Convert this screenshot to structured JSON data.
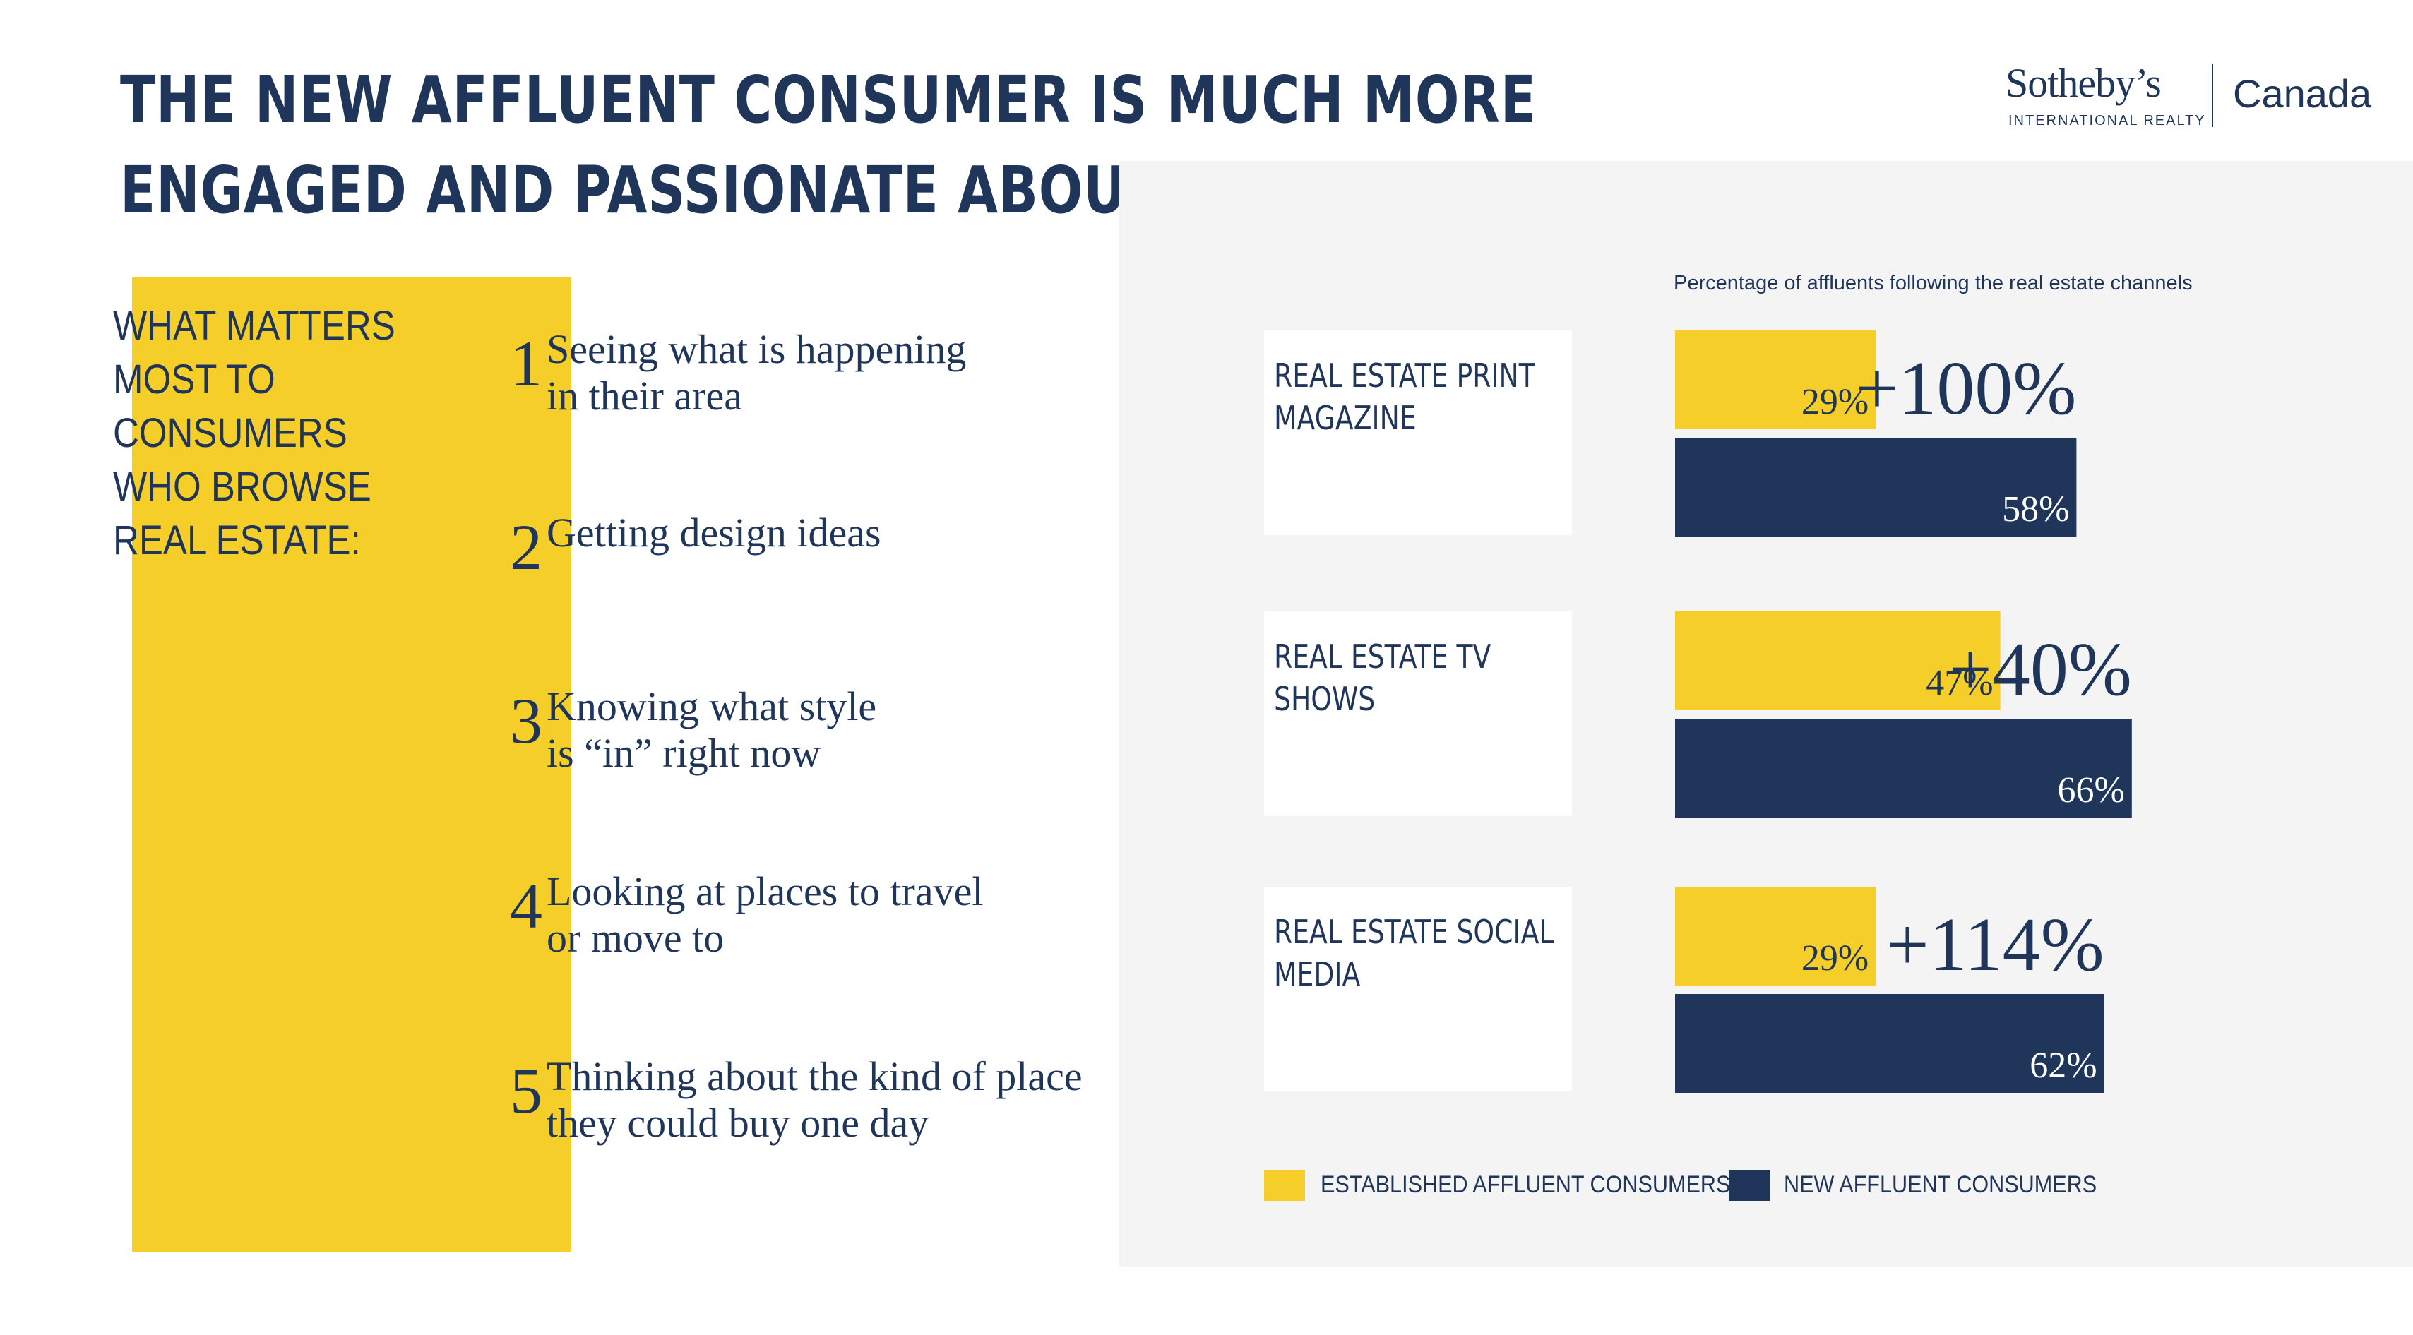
{
  "title_lines": [
    "THE NEW AFFLUENT CONSUMER IS MUCH MORE",
    "ENGAGED AND PASSIONATE ABOUT REAL ESTATE"
  ],
  "logo": {
    "wordmark": "Sotheby’s",
    "sub": "INTERNATIONAL REALTY",
    "country": "Canada"
  },
  "colors": {
    "navy": "#1f3559",
    "yellow": "#f5ce2a",
    "panel": "#f4f4f4"
  },
  "matters_lines": [
    "WHAT MATTERS",
    "MOST TO",
    "CONSUMERS",
    "WHO BROWSE",
    "REAL ESTATE:"
  ],
  "ranked_items": [
    {
      "num": "1",
      "lines": [
        "Seeing what is happening",
        "in their area"
      ]
    },
    {
      "num": "2",
      "lines": [
        "Getting design ideas"
      ]
    },
    {
      "num": "3",
      "lines": [
        "Knowing what style",
        "is “in” right now"
      ]
    },
    {
      "num": "4",
      "lines": [
        "Looking at places to travel",
        "or move to"
      ]
    },
    {
      "num": "5",
      "lines": [
        "Thinking about the kind of place",
        "they could buy one day"
      ]
    }
  ],
  "chart_data": {
    "type": "bar",
    "orientation": "horizontal",
    "title": "Percentage of affluents following the real estate channels",
    "category_lines": [
      [
        "REAL ESTATE PRINT",
        "MAGAZINE"
      ],
      [
        "REAL ESTATE TV",
        "SHOWS"
      ],
      [
        "REAL ESTATE SOCIAL",
        "MEDIA"
      ]
    ],
    "series": [
      {
        "name": "ESTABLISHED AFFLUENT CONSUMERS",
        "color": "#f5ce2a",
        "values": [
          29,
          47,
          29
        ],
        "labels": [
          "29%",
          "47%",
          "29%"
        ]
      },
      {
        "name": "NEW AFFLUENT CONSUMERS",
        "color": "#1f3559",
        "values": [
          58,
          66,
          62
        ],
        "labels": [
          "58%",
          "66%",
          "62%"
        ]
      }
    ],
    "change_labels": [
      "+100%",
      "+40%",
      "+114%"
    ],
    "legend_position": "bottom"
  }
}
